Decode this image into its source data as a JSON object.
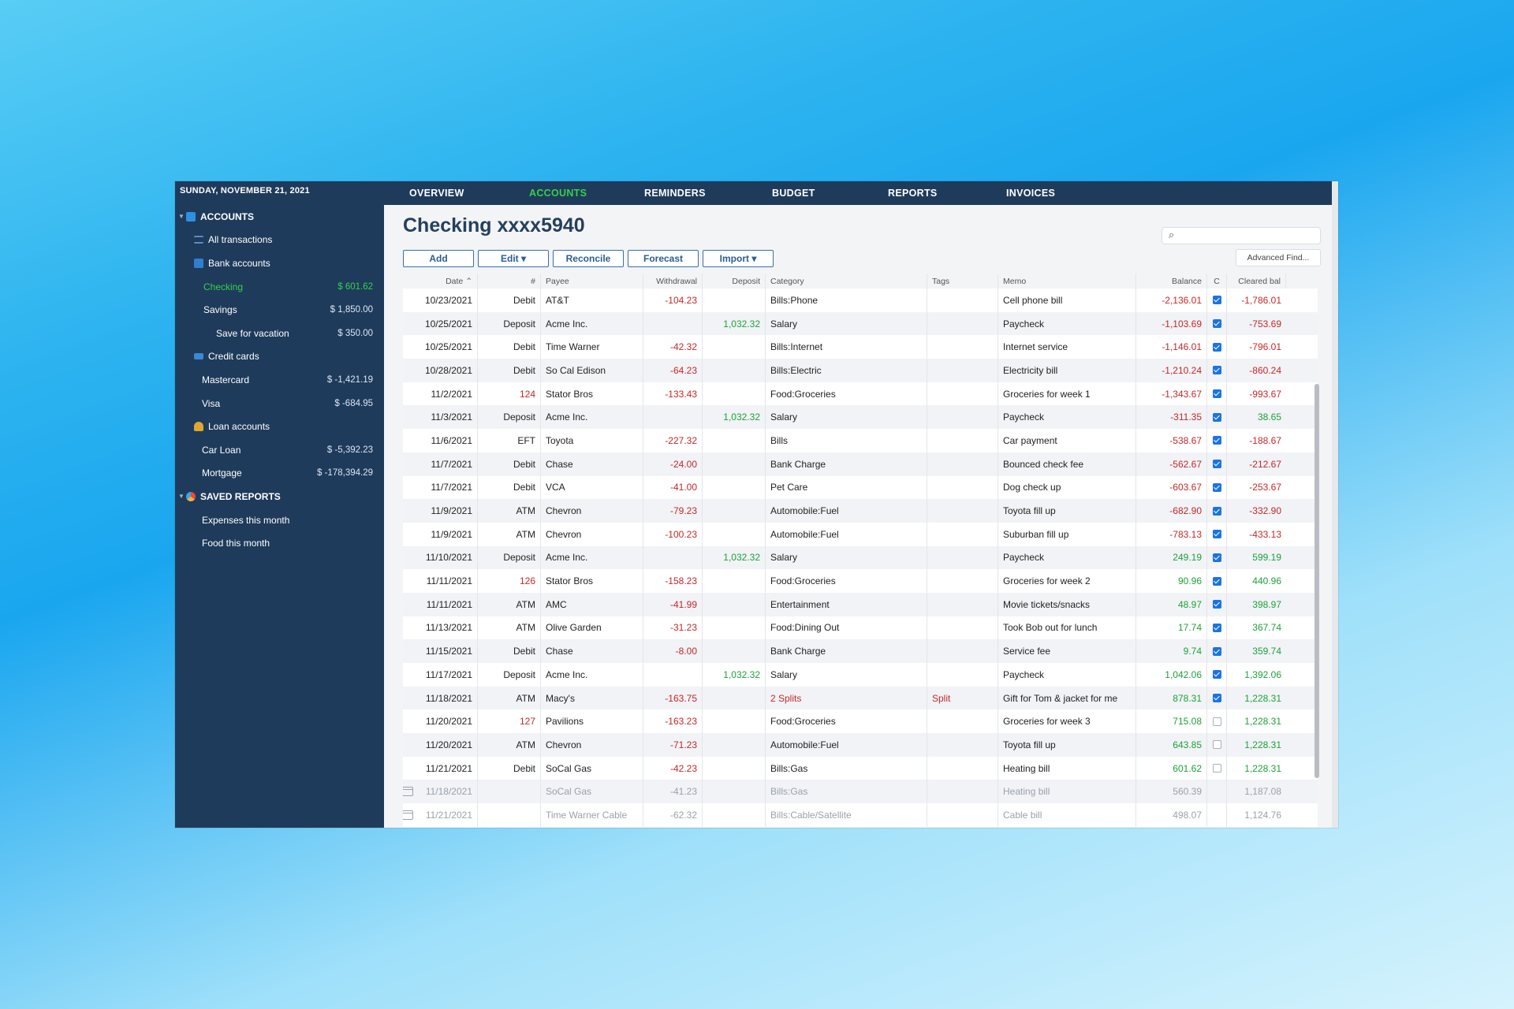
{
  "sidebar": {
    "date": "SUNDAY, NOVEMBER 21, 2021",
    "accounts_header": "ACCOUNTS",
    "all_transactions": "All transactions",
    "bank_accounts": "Bank accounts",
    "checking": {
      "label": "Checking",
      "amount": "$ 601.62"
    },
    "savings": {
      "label": "Savings",
      "amount": "$ 1,850.00"
    },
    "vacation": {
      "label": "Save for vacation",
      "amount": "$ 350.00"
    },
    "credit_cards": "Credit cards",
    "mastercard": {
      "label": "Mastercard",
      "amount": "$ -1,421.19"
    },
    "visa": {
      "label": "Visa",
      "amount": "$ -684.95"
    },
    "loan_accounts": "Loan accounts",
    "car_loan": {
      "label": "Car Loan",
      "amount": "$ -5,392.23"
    },
    "mortgage": {
      "label": "Mortgage",
      "amount": "$ -178,394.29"
    },
    "saved_reports_header": "SAVED REPORTS",
    "expenses_report": "Expenses this month",
    "food_report": "Food this month"
  },
  "nav": {
    "overview": "OVERVIEW",
    "accounts": "ACCOUNTS",
    "reminders": "REMINDERS",
    "budget": "BUDGET",
    "reports": "REPORTS",
    "invoices": "INVOICES"
  },
  "account_title": "Checking xxxx5940",
  "search": {
    "placeholder": ""
  },
  "advanced_find": "Advanced Find...",
  "toolbar": {
    "add": "Add",
    "edit": "Edit ▾",
    "reconcile": "Reconcile",
    "forecast": "Forecast",
    "import": "Import ▾"
  },
  "columns": {
    "date": "Date ⌃",
    "num": "#",
    "payee": "Payee",
    "withdrawal": "Withdrawal",
    "deposit": "Deposit",
    "category": "Category",
    "tags": "Tags",
    "memo": "Memo",
    "balance": "Balance",
    "c": "C",
    "cleared": "Cleared bal"
  },
  "rows": [
    {
      "date": "10/23/2021",
      "num": "Debit",
      "payee": "AT&T",
      "wd": "-104.23",
      "dep": "",
      "cat": "Bills:Phone",
      "tags": "",
      "memo": "Cell phone bill",
      "bal": "-2,136.01",
      "c": true,
      "cb": "-1,786.01"
    },
    {
      "date": "10/25/2021",
      "num": "Deposit",
      "payee": "Acme Inc.",
      "wd": "",
      "dep": "1,032.32",
      "cat": "Salary",
      "tags": "",
      "memo": "Paycheck",
      "bal": "-1,103.69",
      "c": true,
      "cb": "-753.69"
    },
    {
      "date": "10/25/2021",
      "num": "Debit",
      "payee": "Time Warner",
      "wd": "-42.32",
      "dep": "",
      "cat": "Bills:Internet",
      "tags": "",
      "memo": "Internet service",
      "bal": "-1,146.01",
      "c": true,
      "cb": "-796.01"
    },
    {
      "date": "10/28/2021",
      "num": "Debit",
      "payee": "So Cal Edison",
      "wd": "-64.23",
      "dep": "",
      "cat": "Bills:Electric",
      "tags": "",
      "memo": "Electricity bill",
      "bal": "-1,210.24",
      "c": true,
      "cb": "-860.24"
    },
    {
      "date": "11/2/2021",
      "num": "124",
      "payee": "Stator Bros",
      "wd": "-133.43",
      "dep": "",
      "cat": "Food:Groceries",
      "tags": "",
      "memo": "Groceries for week 1",
      "bal": "-1,343.67",
      "c": true,
      "cb": "-993.67"
    },
    {
      "date": "11/3/2021",
      "num": "Deposit",
      "payee": "Acme Inc.",
      "wd": "",
      "dep": "1,032.32",
      "cat": "Salary",
      "tags": "",
      "memo": "Paycheck",
      "bal": "-311.35",
      "c": true,
      "cb": "38.65"
    },
    {
      "date": "11/6/2021",
      "num": "EFT",
      "payee": "Toyota",
      "wd": "-227.32",
      "dep": "",
      "cat": "Bills",
      "tags": "",
      "memo": "Car payment",
      "bal": "-538.67",
      "c": true,
      "cb": "-188.67"
    },
    {
      "date": "11/7/2021",
      "num": "Debit",
      "payee": "Chase",
      "wd": "-24.00",
      "dep": "",
      "cat": "Bank Charge",
      "tags": "",
      "memo": "Bounced check fee",
      "bal": "-562.67",
      "c": true,
      "cb": "-212.67"
    },
    {
      "date": "11/7/2021",
      "num": "Debit",
      "payee": "VCA",
      "wd": "-41.00",
      "dep": "",
      "cat": "Pet Care",
      "tags": "",
      "memo": "Dog check up",
      "bal": "-603.67",
      "c": true,
      "cb": "-253.67"
    },
    {
      "date": "11/9/2021",
      "num": "ATM",
      "payee": "Chevron",
      "wd": "-79.23",
      "dep": "",
      "cat": "Automobile:Fuel",
      "tags": "",
      "memo": "Toyota fill up",
      "bal": "-682.90",
      "c": true,
      "cb": "-332.90"
    },
    {
      "date": "11/9/2021",
      "num": "ATM",
      "payee": "Chevron",
      "wd": "-100.23",
      "dep": "",
      "cat": "Automobile:Fuel",
      "tags": "",
      "memo": "Suburban fill up",
      "bal": "-783.13",
      "c": true,
      "cb": "-433.13"
    },
    {
      "date": "11/10/2021",
      "num": "Deposit",
      "payee": "Acme Inc.",
      "wd": "",
      "dep": "1,032.32",
      "cat": "Salary",
      "tags": "",
      "memo": "Paycheck",
      "bal": "249.19",
      "c": true,
      "cb": "599.19"
    },
    {
      "date": "11/11/2021",
      "num": "126",
      "payee": "Stator Bros",
      "wd": "-158.23",
      "dep": "",
      "cat": "Food:Groceries",
      "tags": "",
      "memo": "Groceries for week 2",
      "bal": "90.96",
      "c": true,
      "cb": "440.96"
    },
    {
      "date": "11/11/2021",
      "num": "ATM",
      "payee": "AMC",
      "wd": "-41.99",
      "dep": "",
      "cat": "Entertainment",
      "tags": "",
      "memo": "Movie tickets/snacks",
      "bal": "48.97",
      "c": true,
      "cb": "398.97"
    },
    {
      "date": "11/13/2021",
      "num": "ATM",
      "payee": "Olive Garden",
      "wd": "-31.23",
      "dep": "",
      "cat": "Food:Dining Out",
      "tags": "",
      "memo": "Took Bob out for lunch",
      "bal": "17.74",
      "c": true,
      "cb": "367.74"
    },
    {
      "date": "11/15/2021",
      "num": "Debit",
      "payee": "Chase",
      "wd": "-8.00",
      "dep": "",
      "cat": "Bank Charge",
      "tags": "",
      "memo": "Service fee",
      "bal": "9.74",
      "c": true,
      "cb": "359.74"
    },
    {
      "date": "11/17/2021",
      "num": "Deposit",
      "payee": "Acme Inc.",
      "wd": "",
      "dep": "1,032.32",
      "cat": "Salary",
      "tags": "",
      "memo": "Paycheck",
      "bal": "1,042.06",
      "c": true,
      "cb": "1,392.06"
    },
    {
      "date": "11/18/2021",
      "num": "ATM",
      "payee": "Macy's",
      "wd": "-163.75",
      "dep": "",
      "cat": "2 Splits",
      "tags": "Split",
      "memo": "Gift for Tom & jacket for me",
      "bal": "878.31",
      "c": true,
      "cb": "1,228.31"
    },
    {
      "date": "11/20/2021",
      "num": "127",
      "payee": "Pavilions",
      "wd": "-163.23",
      "dep": "",
      "cat": "Food:Groceries",
      "tags": "",
      "memo": "Groceries for week 3",
      "bal": "715.08",
      "c": false,
      "cb": "1,228.31"
    },
    {
      "date": "11/20/2021",
      "num": "ATM",
      "payee": "Chevron",
      "wd": "-71.23",
      "dep": "",
      "cat": "Automobile:Fuel",
      "tags": "",
      "memo": "Toyota fill up",
      "bal": "643.85",
      "c": false,
      "cb": "1,228.31"
    },
    {
      "date": "11/21/2021",
      "num": "Debit",
      "payee": "SoCal Gas",
      "wd": "-42.23",
      "dep": "",
      "cat": "Bills:Gas",
      "tags": "",
      "memo": "Heating bill",
      "bal": "601.62",
      "c": false,
      "cb": "1,228.31"
    },
    {
      "date": "11/18/2021",
      "num": "",
      "payee": "SoCal Gas",
      "wd": "-41.23",
      "dep": "",
      "cat": "Bills:Gas",
      "tags": "",
      "memo": "Heating bill",
      "bal": "560.39",
      "c": null,
      "cb": "1,187.08",
      "scheduled": true
    },
    {
      "date": "11/21/2021",
      "num": "",
      "payee": "Time Warner Cable",
      "wd": "-62.32",
      "dep": "",
      "cat": "Bills:Cable/Satellite",
      "tags": "",
      "memo": "Cable bill",
      "bal": "498.07",
      "c": null,
      "cb": "1,124.76",
      "scheduled": true
    }
  ],
  "colors": {
    "navy": "#1f3b5b",
    "green": "#33d14b",
    "red": "#c52828",
    "deposit_green": "#1ea23a",
    "check_blue": "#1b73e8"
  }
}
